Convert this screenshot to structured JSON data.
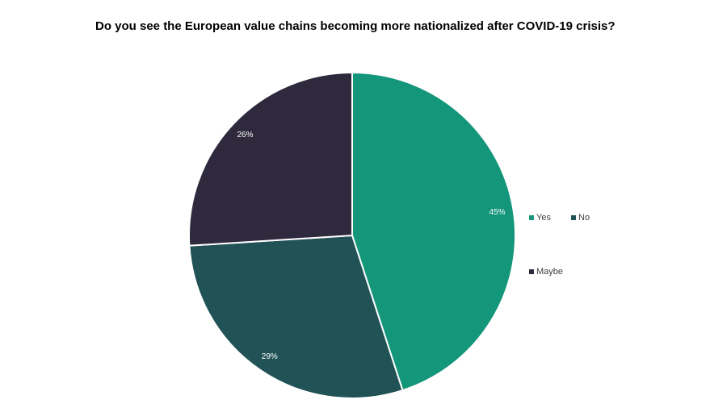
{
  "chart_data": {
    "type": "pie",
    "title": "Do you see the European value chains becoming more nationalized after COVID-19 crisis?",
    "categories": [
      "Yes",
      "No",
      "Maybe"
    ],
    "values": [
      45,
      29,
      26
    ],
    "value_labels": [
      "45%",
      "29%",
      "26%"
    ],
    "colors": [
      "#13967a",
      "#215256",
      "#2e293d"
    ],
    "legend": "right"
  }
}
